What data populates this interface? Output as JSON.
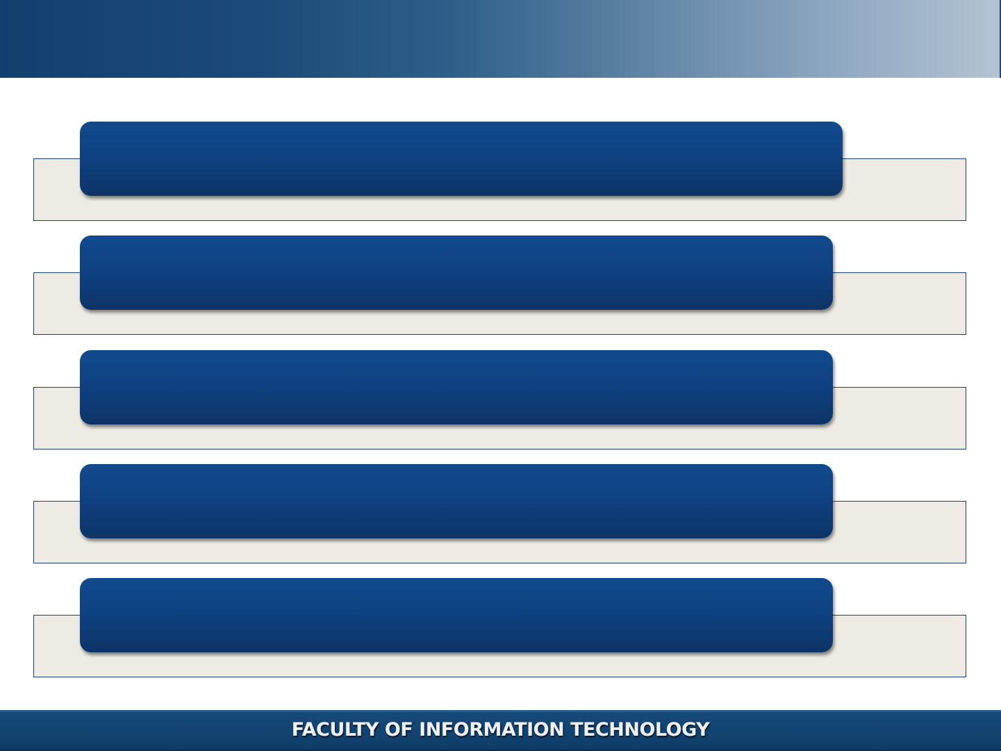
{
  "header": {
    "title": ""
  },
  "rows": [
    {
      "heading": "",
      "body": ""
    },
    {
      "heading": "",
      "body": ""
    },
    {
      "heading": "",
      "body": ""
    },
    {
      "heading": "",
      "body": ""
    },
    {
      "heading": "",
      "body": ""
    }
  ],
  "footer": {
    "label": "FACULTY OF INFORMATION TECHNOLOGY"
  },
  "colors": {
    "header_start": "#133f6e",
    "header_end": "#b3c3d2",
    "pill_blue": "#0f4282",
    "panel_fill": "#edebe4",
    "panel_border": "#163d6e",
    "footer_blue": "#124371"
  }
}
